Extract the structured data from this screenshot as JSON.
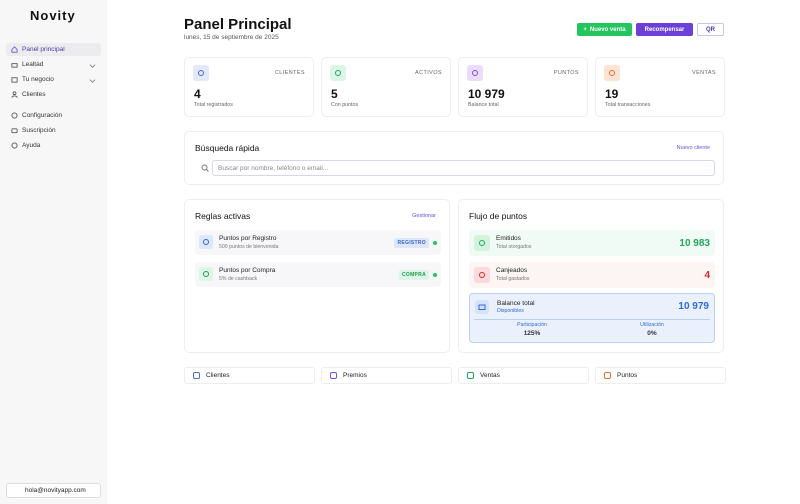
{
  "sidebar": {
    "logo": "Novity",
    "nav": [
      "Panel principal",
      "Lealtad",
      "Tu negocio",
      "Clientes",
      "Configuración",
      "Suscripción",
      "Ayuda"
    ],
    "user": "hola@novityapp.com"
  },
  "header": {
    "title": "Panel Principal",
    "date": "lunes, 15 de septiembre de 2025",
    "buttons": [
      "Nuevo venta",
      "Recompensar",
      "QR"
    ]
  },
  "stats": [
    {
      "label": "CLIENTES",
      "value": "4",
      "caption": "Total registrados"
    },
    {
      "label": "ACTIVOS",
      "value": "5",
      "caption": "Con puntos"
    },
    {
      "label": "PUNTOS",
      "value": "10 979",
      "caption": "Balance total"
    },
    {
      "label": "VENTAS",
      "value": "19",
      "caption": "Total transacciones"
    }
  ],
  "search": {
    "title": "Búsqueda rápida",
    "action": "Nuevo cliente",
    "placeholder": "Buscar por nombre, teléfono o email..."
  },
  "rules": {
    "title": "Reglas activas",
    "action": "Gestionar",
    "items": [
      {
        "name": "Puntos por Registro",
        "desc": "500 puntos de bienvenida",
        "tag": "REGISTRO"
      },
      {
        "name": "Puntos por Compra",
        "desc": "5% de cashback",
        "tag": "COMPRA"
      }
    ]
  },
  "flow": {
    "title": "Flujo de puntos",
    "items": [
      {
        "label": "Emitidos",
        "caption": "Total otorgados",
        "value": "10 983"
      },
      {
        "label": "Canjeados",
        "caption": "Total gastados",
        "value": "4"
      }
    ],
    "balance": {
      "label": "Balance total",
      "caption": "Disponibles",
      "value": "10 979"
    },
    "metrics": [
      {
        "label": "Participación",
        "value": "125%"
      },
      {
        "label": "Utilización",
        "value": "0%"
      }
    ]
  },
  "shortcuts": [
    "Clientes",
    "Premios",
    "Ventas",
    "Puntos"
  ]
}
